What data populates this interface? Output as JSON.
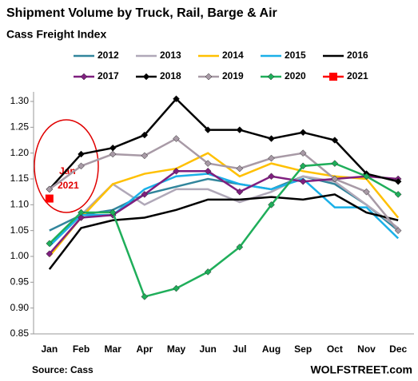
{
  "chart_data": {
    "type": "line",
    "title": "Shipment Volume by Truck, Rail, Barge & Air",
    "subtitle": "Cass Freight Index",
    "source": "Source: Cass",
    "brand": "WOLFSTREET.com",
    "annotation": [
      "Jan",
      "2021"
    ],
    "categories": [
      "Jan",
      "Feb",
      "Mar",
      "Apr",
      "May",
      "Jun",
      "Jul",
      "Aug",
      "Sep",
      "Oct",
      "Nov",
      "Dec"
    ],
    "ylim": [
      0.85,
      1.3
    ],
    "yticks": [
      0.85,
      {
        "value": 0.9,
        "label": "0.90"
      },
      0.95,
      {
        "value": 1.0,
        "label": "1.00"
      },
      1.05,
      {
        "value": 1.1,
        "label": "1.10"
      },
      1.15,
      {
        "value": 1.2,
        "label": "1.20"
      },
      1.25,
      {
        "value": 1.3,
        "label": "1.30"
      }
    ],
    "grid": false,
    "series": [
      {
        "name": "2012",
        "color": "#31859c",
        "marker": "none",
        "values": [
          1.05,
          1.08,
          1.09,
          1.12,
          1.135,
          1.15,
          1.14,
          1.13,
          1.155,
          1.14,
          1.1,
          1.05
        ]
      },
      {
        "name": "2013",
        "color": "#b0a8b8",
        "marker": "none",
        "values": [
          1.02,
          1.08,
          1.14,
          1.1,
          1.13,
          1.13,
          1.105,
          1.125,
          1.155,
          1.145,
          1.1,
          1.055
        ]
      },
      {
        "name": "2014",
        "color": "#ffc000",
        "marker": "none",
        "values": [
          1.0,
          1.075,
          1.14,
          1.16,
          1.17,
          1.2,
          1.155,
          1.18,
          1.165,
          1.155,
          1.15,
          1.075
        ]
      },
      {
        "name": "2015",
        "color": "#1ab0e8",
        "marker": "none",
        "values": [
          1.02,
          1.08,
          1.08,
          1.13,
          1.155,
          1.16,
          1.14,
          1.13,
          1.15,
          1.095,
          1.095,
          1.035
        ]
      },
      {
        "name": "2016",
        "color": "#000000",
        "marker": "none",
        "values": [
          0.975,
          1.055,
          1.07,
          1.075,
          1.09,
          1.11,
          1.11,
          1.115,
          1.11,
          1.12,
          1.085,
          1.07
        ]
      },
      {
        "name": "2017",
        "color": "#7f1f7f",
        "marker": "diamond",
        "values": [
          1.005,
          1.075,
          1.08,
          1.12,
          1.165,
          1.165,
          1.125,
          1.155,
          1.145,
          1.15,
          1.155,
          1.15
        ]
      },
      {
        "name": "2018",
        "color": "#000000",
        "marker": "diamond",
        "values": [
          1.13,
          1.198,
          1.21,
          1.235,
          1.305,
          1.245,
          1.245,
          1.228,
          1.24,
          1.225,
          1.16,
          1.145
        ]
      },
      {
        "name": "2019",
        "color": "#a89aa6",
        "marker": "diamond",
        "values": [
          1.13,
          1.175,
          1.198,
          1.195,
          1.228,
          1.18,
          1.17,
          1.19,
          1.2,
          1.15,
          1.125,
          1.05
        ]
      },
      {
        "name": "2020",
        "color": "#1fae5a",
        "marker": "diamond",
        "values": [
          1.025,
          1.085,
          1.085,
          0.922,
          0.938,
          0.97,
          1.018,
          1.1,
          1.175,
          1.18,
          1.155,
          1.12
        ]
      },
      {
        "name": "2021",
        "color": "#ff0000",
        "marker": "square",
        "values": [
          1.112,
          null,
          null,
          null,
          null,
          null,
          null,
          null,
          null,
          null,
          null,
          null
        ]
      }
    ]
  }
}
